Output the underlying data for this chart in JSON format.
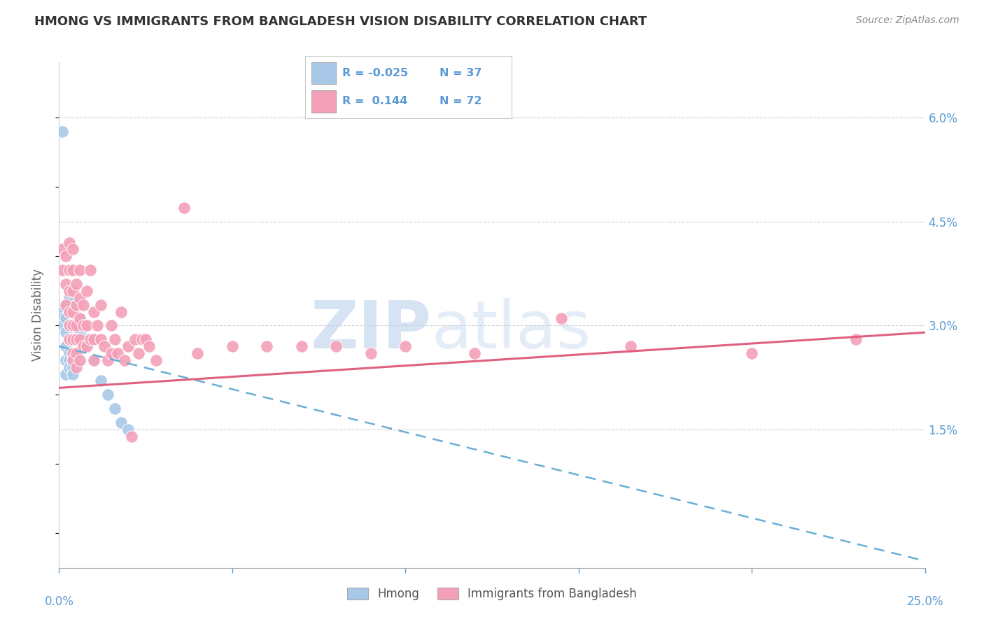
{
  "title": "HMONG VS IMMIGRANTS FROM BANGLADESH VISION DISABILITY CORRELATION CHART",
  "source": "Source: ZipAtlas.com",
  "ylabel": "Vision Disability",
  "ylabel_right_ticks": [
    "6.0%",
    "4.5%",
    "3.0%",
    "1.5%"
  ],
  "ylabel_right_vals": [
    0.06,
    0.045,
    0.03,
    0.015
  ],
  "hmong_color": "#a8c8e8",
  "bangladesh_color": "#f4a0b8",
  "trend_hmong_color": "#6aaed6",
  "trend_bangladesh_color": "#e06080",
  "background_color": "#ffffff",
  "watermark_zip": "ZIP",
  "watermark_atlas": "atlas",
  "xlim": [
    0.0,
    0.25
  ],
  "ylim": [
    -0.005,
    0.068
  ],
  "hmong_points": [
    [
      0.001,
      0.058
    ],
    [
      0.001,
      0.032
    ],
    [
      0.001,
      0.031
    ],
    [
      0.001,
      0.03
    ],
    [
      0.002,
      0.033
    ],
    [
      0.002,
      0.031
    ],
    [
      0.002,
      0.029
    ],
    [
      0.002,
      0.027
    ],
    [
      0.002,
      0.025
    ],
    [
      0.002,
      0.023
    ],
    [
      0.003,
      0.034
    ],
    [
      0.003,
      0.032
    ],
    [
      0.003,
      0.03
    ],
    [
      0.003,
      0.028
    ],
    [
      0.003,
      0.026
    ],
    [
      0.003,
      0.025
    ],
    [
      0.003,
      0.024
    ],
    [
      0.004,
      0.03
    ],
    [
      0.004,
      0.028
    ],
    [
      0.004,
      0.026
    ],
    [
      0.004,
      0.025
    ],
    [
      0.004,
      0.024
    ],
    [
      0.004,
      0.023
    ],
    [
      0.005,
      0.033
    ],
    [
      0.005,
      0.03
    ],
    [
      0.005,
      0.028
    ],
    [
      0.005,
      0.026
    ],
    [
      0.006,
      0.031
    ],
    [
      0.006,
      0.029
    ],
    [
      0.007,
      0.03
    ],
    [
      0.008,
      0.028
    ],
    [
      0.01,
      0.025
    ],
    [
      0.012,
      0.022
    ],
    [
      0.014,
      0.02
    ],
    [
      0.016,
      0.018
    ],
    [
      0.018,
      0.016
    ],
    [
      0.02,
      0.015
    ]
  ],
  "bangladesh_points": [
    [
      0.001,
      0.041
    ],
    [
      0.001,
      0.038
    ],
    [
      0.002,
      0.04
    ],
    [
      0.002,
      0.036
    ],
    [
      0.002,
      0.033
    ],
    [
      0.003,
      0.042
    ],
    [
      0.003,
      0.038
    ],
    [
      0.003,
      0.035
    ],
    [
      0.003,
      0.032
    ],
    [
      0.003,
      0.03
    ],
    [
      0.003,
      0.028
    ],
    [
      0.004,
      0.041
    ],
    [
      0.004,
      0.038
    ],
    [
      0.004,
      0.035
    ],
    [
      0.004,
      0.032
    ],
    [
      0.004,
      0.03
    ],
    [
      0.004,
      0.028
    ],
    [
      0.004,
      0.026
    ],
    [
      0.004,
      0.025
    ],
    [
      0.005,
      0.036
    ],
    [
      0.005,
      0.033
    ],
    [
      0.005,
      0.03
    ],
    [
      0.005,
      0.028
    ],
    [
      0.005,
      0.026
    ],
    [
      0.005,
      0.024
    ],
    [
      0.006,
      0.038
    ],
    [
      0.006,
      0.034
    ],
    [
      0.006,
      0.031
    ],
    [
      0.006,
      0.028
    ],
    [
      0.006,
      0.025
    ],
    [
      0.007,
      0.033
    ],
    [
      0.007,
      0.03
    ],
    [
      0.007,
      0.027
    ],
    [
      0.008,
      0.035
    ],
    [
      0.008,
      0.03
    ],
    [
      0.008,
      0.027
    ],
    [
      0.009,
      0.038
    ],
    [
      0.009,
      0.028
    ],
    [
      0.01,
      0.032
    ],
    [
      0.01,
      0.028
    ],
    [
      0.01,
      0.025
    ],
    [
      0.011,
      0.03
    ],
    [
      0.012,
      0.033
    ],
    [
      0.012,
      0.028
    ],
    [
      0.013,
      0.027
    ],
    [
      0.014,
      0.025
    ],
    [
      0.015,
      0.03
    ],
    [
      0.015,
      0.026
    ],
    [
      0.016,
      0.028
    ],
    [
      0.017,
      0.026
    ],
    [
      0.018,
      0.032
    ],
    [
      0.019,
      0.025
    ],
    [
      0.02,
      0.027
    ],
    [
      0.021,
      0.014
    ],
    [
      0.022,
      0.028
    ],
    [
      0.023,
      0.026
    ],
    [
      0.024,
      0.028
    ],
    [
      0.025,
      0.028
    ],
    [
      0.026,
      0.027
    ],
    [
      0.028,
      0.025
    ],
    [
      0.036,
      0.047
    ],
    [
      0.04,
      0.026
    ],
    [
      0.05,
      0.027
    ],
    [
      0.06,
      0.027
    ],
    [
      0.07,
      0.027
    ],
    [
      0.08,
      0.027
    ],
    [
      0.09,
      0.026
    ],
    [
      0.1,
      0.027
    ],
    [
      0.12,
      0.026
    ],
    [
      0.145,
      0.031
    ],
    [
      0.165,
      0.027
    ],
    [
      0.2,
      0.026
    ],
    [
      0.23,
      0.028
    ]
  ],
  "grid_color": "#cccccc",
  "title_color": "#333333",
  "axis_color": "#5b9bd5",
  "tick_color": "#5b9bd5",
  "hmong_trend_start_x": 0.0,
  "hmong_trend_end_x": 0.25,
  "hmong_trend_start_y": 0.027,
  "hmong_trend_end_y": -0.004,
  "bangladesh_trend_start_x": 0.0,
  "bangladesh_trend_end_x": 0.25,
  "bangladesh_trend_start_y": 0.021,
  "bangladesh_trend_end_y": 0.029
}
